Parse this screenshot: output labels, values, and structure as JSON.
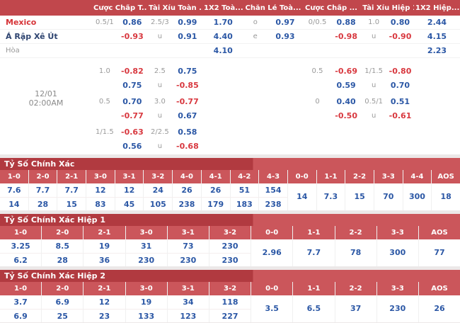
{
  "colors": {
    "header_red": "#c1474c",
    "section_title_dark": "#b13a40",
    "section_title_light": "#cb565b",
    "odds_blue": "#2b57a5",
    "odds_red": "#d8383f",
    "line_gray": "#9a9a9a",
    "home_team_red": "#d63438",
    "away_team_navy": "#2e4470",
    "page_bg": "#ece8e8"
  },
  "main_board": {
    "headers": [
      {
        "key": "handicap-ft",
        "label": "Cược Chấp T..."
      },
      {
        "key": "over-under-ft",
        "label": "Tài Xỉu Toàn ..."
      },
      {
        "key": "1x2-ft",
        "label": "1X2 Toà..."
      },
      {
        "key": "odd-even-ft",
        "label": "Chẵn Lẻ Toà..."
      },
      {
        "key": "handicap-h1",
        "label": "Cược Chấp ..."
      },
      {
        "key": "over-under-h1",
        "label": "Tài Xỉu Hiệp 1"
      },
      {
        "key": "1x2-h1",
        "label": "1X2 Hiệp..."
      }
    ],
    "datetime": {
      "date": "12/01",
      "time": "02:00AM"
    },
    "rows": [
      {
        "name": "row-home",
        "cells": [
          {
            "t": "Mexico",
            "c": "th",
            "n": "team-home"
          },
          {
            "t": "0.5/1",
            "c": "g"
          },
          {
            "t": "0.86",
            "c": "b"
          },
          {
            "t": "2.5/3",
            "c": "g"
          },
          {
            "t": "0.99",
            "c": "b"
          },
          {
            "t": "1.70",
            "c": "b"
          },
          {
            "t": "o",
            "c": "g"
          },
          {
            "t": "0.97",
            "c": "b"
          },
          {
            "t": "0/0.5",
            "c": "g"
          },
          {
            "t": "0.88",
            "c": "b"
          },
          {
            "t": "1.0",
            "c": "g"
          },
          {
            "t": "0.80",
            "c": "b"
          },
          {
            "t": "2.44",
            "c": "b"
          }
        ]
      },
      {
        "name": "row-away",
        "cells": [
          {
            "t": "Á Rập Xê Út",
            "c": "ta",
            "n": "team-away"
          },
          null,
          {
            "t": "-0.93",
            "c": "r"
          },
          {
            "t": "u",
            "c": "g"
          },
          {
            "t": "0.91",
            "c": "b"
          },
          {
            "t": "4.40",
            "c": "b"
          },
          {
            "t": "e",
            "c": "g"
          },
          {
            "t": "0.93",
            "c": "b"
          },
          null,
          {
            "t": "-0.98",
            "c": "r"
          },
          {
            "t": "u",
            "c": "g"
          },
          {
            "t": "-0.90",
            "c": "r"
          },
          {
            "t": "4.15",
            "c": "b"
          }
        ]
      },
      {
        "name": "row-draw",
        "cells": [
          {
            "t": "Hòa",
            "c": "td",
            "n": "draw-label"
          },
          null,
          null,
          null,
          null,
          {
            "t": "4.10",
            "c": "b"
          },
          null,
          null,
          null,
          null,
          null,
          null,
          {
            "t": "2.23",
            "c": "b"
          }
        ]
      },
      {
        "name": "odds-row",
        "cells": [
          null,
          {
            "t": "1.0",
            "c": "g"
          },
          {
            "t": "-0.82",
            "c": "r"
          },
          {
            "t": "2.5",
            "c": "g"
          },
          {
            "t": "0.75",
            "c": "b"
          },
          null,
          null,
          null,
          {
            "t": "0.5",
            "c": "g"
          },
          {
            "t": "-0.69",
            "c": "r"
          },
          {
            "t": "1/1.5",
            "c": "g"
          },
          {
            "t": "-0.80",
            "c": "r"
          },
          null
        ]
      },
      {
        "name": "odds-row",
        "cells": [
          null,
          null,
          {
            "t": "0.75",
            "c": "b"
          },
          {
            "t": "u",
            "c": "g"
          },
          {
            "t": "-0.85",
            "c": "r"
          },
          null,
          null,
          null,
          null,
          {
            "t": "0.59",
            "c": "b"
          },
          {
            "t": "u",
            "c": "g"
          },
          {
            "t": "0.70",
            "c": "b"
          },
          null
        ]
      },
      {
        "name": "odds-row",
        "cells": [
          null,
          {
            "t": "0.5",
            "c": "g"
          },
          {
            "t": "0.70",
            "c": "b"
          },
          {
            "t": "3.0",
            "c": "g"
          },
          {
            "t": "-0.77",
            "c": "r"
          },
          null,
          null,
          null,
          {
            "t": "0",
            "c": "g"
          },
          {
            "t": "0.40",
            "c": "b"
          },
          {
            "t": "0.5/1",
            "c": "g"
          },
          {
            "t": "0.51",
            "c": "b"
          },
          null
        ]
      },
      {
        "name": "odds-row",
        "cells": [
          null,
          null,
          {
            "t": "-0.77",
            "c": "r"
          },
          {
            "t": "u",
            "c": "g"
          },
          {
            "t": "0.67",
            "c": "b"
          },
          null,
          null,
          null,
          null,
          {
            "t": "-0.50",
            "c": "r"
          },
          {
            "t": "u",
            "c": "g"
          },
          {
            "t": "-0.61",
            "c": "r"
          },
          null
        ]
      },
      {
        "name": "odds-row",
        "cells": [
          null,
          {
            "t": "1/1.5",
            "c": "g"
          },
          {
            "t": "-0.63",
            "c": "r"
          },
          {
            "t": "2/2.5",
            "c": "g"
          },
          {
            "t": "0.58",
            "c": "b"
          },
          null,
          null,
          null,
          null,
          null,
          null,
          null,
          null
        ]
      },
      {
        "name": "odds-row",
        "cells": [
          null,
          null,
          {
            "t": "0.56",
            "c": "b"
          },
          {
            "t": "u",
            "c": "g"
          },
          {
            "t": "-0.68",
            "c": "r"
          },
          null,
          null,
          null,
          null,
          null,
          null,
          null,
          null
        ]
      }
    ]
  },
  "score_sections": [
    {
      "key": "ft",
      "title": "Tỷ Số Chính Xác",
      "columns": [
        "1-0",
        "2-0",
        "2-1",
        "3-0",
        "3-1",
        "3-2",
        "4-0",
        "4-1",
        "4-2",
        "4-3",
        "0-0",
        "1-1",
        "2-2",
        "3-3",
        "4-4",
        "AOS"
      ],
      "top": [
        "7.6",
        "7.7",
        "7.7",
        "12",
        "12",
        "24",
        "26",
        "26",
        "51",
        "154"
      ],
      "bottom": [
        "14",
        "28",
        "15",
        "83",
        "45",
        "105",
        "238",
        "179",
        "183",
        "238"
      ],
      "single": [
        "14",
        "7.3",
        "15",
        "70",
        "300",
        "18"
      ]
    },
    {
      "key": "h1",
      "title": "Tỷ Số Chính Xác Hiệp 1",
      "columns": [
        "1-0",
        "2-0",
        "2-1",
        "3-0",
        "3-1",
        "3-2",
        "0-0",
        "1-1",
        "2-2",
        "3-3",
        "AOS"
      ],
      "top": [
        "3.25",
        "8.5",
        "19",
        "31",
        "73",
        "230"
      ],
      "bottom": [
        "6.2",
        "28",
        "36",
        "230",
        "230",
        "230"
      ],
      "single": [
        "2.96",
        "7.7",
        "78",
        "300",
        "77"
      ]
    },
    {
      "key": "h2",
      "title": "Tỷ Số Chính Xác Hiệp 2",
      "columns": [
        "1-0",
        "2-0",
        "2-1",
        "3-0",
        "3-1",
        "3-2",
        "0-0",
        "1-1",
        "2-2",
        "3-3",
        "AOS"
      ],
      "top": [
        "3.7",
        "6.9",
        "12",
        "19",
        "34",
        "118"
      ],
      "bottom": [
        "6.9",
        "25",
        "23",
        "133",
        "123",
        "227"
      ],
      "single": [
        "3.5",
        "6.5",
        "37",
        "230",
        "26"
      ]
    }
  ]
}
